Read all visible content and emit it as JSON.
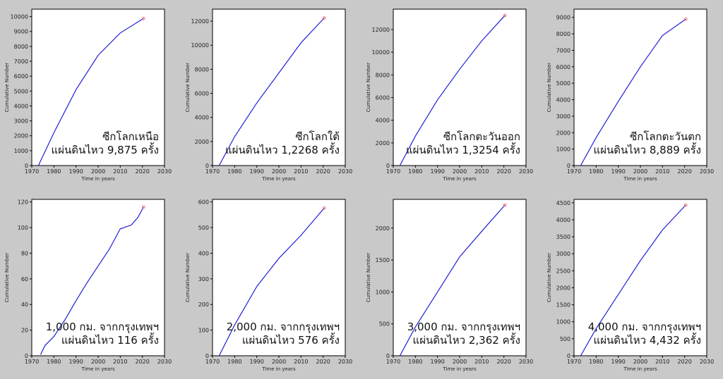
{
  "chart_data": [
    {
      "type": "line",
      "xlabel": "Time in years",
      "ylabel": "Cumulative Number",
      "xlim": [
        1970,
        2030
      ],
      "ylim": [
        0,
        10500
      ],
      "x_ticks": [
        1970,
        1980,
        1990,
        2000,
        2010,
        2020,
        2030
      ],
      "y_ticks": [
        0,
        1000,
        2000,
        3000,
        4000,
        5000,
        6000,
        7000,
        8000,
        9000,
        10000
      ],
      "annotation": [
        "ซีกโลกเหนือ",
        "แผ่นดินไหว 9,875 ครั้ง"
      ],
      "series": [
        {
          "x": [
            1973,
            1980,
            1990,
            2000,
            2010,
            2020.5
          ],
          "values": [
            0,
            2200,
            5100,
            7400,
            8900,
            9875
          ],
          "color": "#1f1fd8"
        }
      ],
      "end_marker": {
        "x": 2020.5,
        "y": 9875,
        "color": "#ff6a6a"
      }
    },
    {
      "type": "line",
      "xlabel": "Time in years",
      "ylabel": "Cumulative Number",
      "xlim": [
        1970,
        2030
      ],
      "ylim": [
        0,
        13000
      ],
      "x_ticks": [
        1970,
        1980,
        1990,
        2000,
        2010,
        2020,
        2030
      ],
      "y_ticks": [
        0,
        2000,
        4000,
        6000,
        8000,
        10000,
        12000
      ],
      "annotation": [
        "ซีกโลกใต้",
        "แผ่นดินไหว 1,2268 ครั้ง"
      ],
      "series": [
        {
          "x": [
            1973,
            1980,
            1990,
            2000,
            2010,
            2020.5
          ],
          "values": [
            0,
            2400,
            5200,
            7700,
            10200,
            12268
          ],
          "color": "#1f1fd8"
        }
      ],
      "end_marker": {
        "x": 2020.5,
        "y": 12268,
        "color": "#ff6a6a"
      }
    },
    {
      "type": "line",
      "xlabel": "Time in years",
      "ylabel": "Cumulative Number",
      "xlim": [
        1970,
        2030
      ],
      "ylim": [
        0,
        13800
      ],
      "x_ticks": [
        1970,
        1980,
        1990,
        2000,
        2010,
        2020,
        2030
      ],
      "y_ticks": [
        0,
        2000,
        4000,
        6000,
        8000,
        10000,
        12000
      ],
      "annotation": [
        "ซีกโลกตะวันออก",
        "แผ่นดินไหว 1,3254 ครั้ง"
      ],
      "series": [
        {
          "x": [
            1973,
            1980,
            1990,
            2000,
            2010,
            2020.5
          ],
          "values": [
            0,
            2600,
            5800,
            8500,
            11000,
            13254
          ],
          "color": "#1f1fd8"
        }
      ],
      "end_marker": {
        "x": 2020.5,
        "y": 13254,
        "color": "#ff6a6a"
      }
    },
    {
      "type": "line",
      "xlabel": "Time in years",
      "ylabel": "Cumulative Number",
      "xlim": [
        1970,
        2030
      ],
      "ylim": [
        0,
        9500
      ],
      "x_ticks": [
        1970,
        1980,
        1990,
        2000,
        2010,
        2020,
        2030
      ],
      "y_ticks": [
        0,
        1000,
        2000,
        3000,
        4000,
        5000,
        6000,
        7000,
        8000,
        9000
      ],
      "annotation": [
        "ซีกโลกตะวันตก",
        "แผ่นดินไหว 8,889 ครั้ง"
      ],
      "series": [
        {
          "x": [
            1973,
            1980,
            1990,
            2000,
            2010,
            2020.5
          ],
          "values": [
            0,
            1700,
            3900,
            6000,
            7900,
            8889
          ],
          "color": "#1f1fd8"
        }
      ],
      "end_marker": {
        "x": 2020.5,
        "y": 8889,
        "color": "#ff6a6a"
      }
    },
    {
      "type": "line",
      "xlabel": "Time in years",
      "ylabel": "Cumulative Number",
      "xlim": [
        1970,
        2030
      ],
      "ylim": [
        0,
        122
      ],
      "x_ticks": [
        1970,
        1980,
        1990,
        2000,
        2010,
        2020,
        2030
      ],
      "y_ticks": [
        0,
        20,
        40,
        60,
        80,
        100,
        120
      ],
      "annotation": [
        "1,000 กม. จากกรุงเทพฯ",
        "แผ่นดินไหว 116 ครั้ง"
      ],
      "series": [
        {
          "x": [
            1974,
            1976,
            1980,
            1985,
            1990,
            1995,
            2000,
            2005,
            2010,
            2015,
            2018,
            2020.5
          ],
          "values": [
            1,
            8,
            15,
            28,
            43,
            57,
            70,
            83,
            99,
            102,
            108,
            116
          ],
          "color": "#1f1fd8"
        }
      ],
      "end_marker": {
        "x": 2020.5,
        "y": 116,
        "color": "#ff6a6a"
      }
    },
    {
      "type": "line",
      "xlabel": "Time in years",
      "ylabel": "Cumulative Number",
      "xlim": [
        1970,
        2030
      ],
      "ylim": [
        0,
        610
      ],
      "x_ticks": [
        1970,
        1980,
        1990,
        2000,
        2010,
        2020,
        2030
      ],
      "y_ticks": [
        0,
        100,
        200,
        300,
        400,
        500,
        600
      ],
      "annotation": [
        "2,000 กม. จากกรุงเทพฯ",
        "แผ่นดินไหว 576 ครั้ง"
      ],
      "series": [
        {
          "x": [
            1973,
            1980,
            1990,
            2000,
            2010,
            2020.5
          ],
          "values": [
            0,
            120,
            270,
            380,
            470,
            576
          ],
          "color": "#1f1fd8"
        }
      ],
      "end_marker": {
        "x": 2020.5,
        "y": 576,
        "color": "#ff6a6a"
      }
    },
    {
      "type": "line",
      "xlabel": "Time in years",
      "ylabel": "Cumulative Number",
      "xlim": [
        1970,
        2030
      ],
      "ylim": [
        0,
        2450
      ],
      "x_ticks": [
        1970,
        1980,
        1990,
        2000,
        2010,
        2020,
        2030
      ],
      "y_ticks": [
        0,
        500,
        1000,
        1500,
        2000
      ],
      "annotation": [
        "3,000 กม. จากกรุงเทพฯ",
        "แผ่นดินไหว 2,362 ครั้ง"
      ],
      "series": [
        {
          "x": [
            1973,
            1980,
            1990,
            2000,
            2010,
            2020.5
          ],
          "values": [
            0,
            450,
            1000,
            1550,
            1950,
            2362
          ],
          "color": "#1f1fd8"
        }
      ],
      "end_marker": {
        "x": 2020.5,
        "y": 2362,
        "color": "#ff6a6a"
      }
    },
    {
      "type": "line",
      "xlabel": "Time in years",
      "ylabel": "Cumulative Number",
      "xlim": [
        1970,
        2030
      ],
      "ylim": [
        0,
        4600
      ],
      "x_ticks": [
        1970,
        1980,
        1990,
        2000,
        2010,
        2020,
        2030
      ],
      "y_ticks": [
        0,
        500,
        1000,
        1500,
        2000,
        2500,
        3000,
        3500,
        4000,
        4500
      ],
      "annotation": [
        "4,000 กม. จากกรุงเทพฯ",
        "แผ่นดินไหว 4,432 ครั้ง"
      ],
      "series": [
        {
          "x": [
            1973,
            1980,
            1990,
            2000,
            2010,
            2020.5
          ],
          "values": [
            0,
            800,
            1800,
            2800,
            3700,
            4432
          ],
          "color": "#1f1fd8"
        }
      ],
      "end_marker": {
        "x": 2020.5,
        "y": 4432,
        "color": "#ff6a6a"
      }
    }
  ]
}
